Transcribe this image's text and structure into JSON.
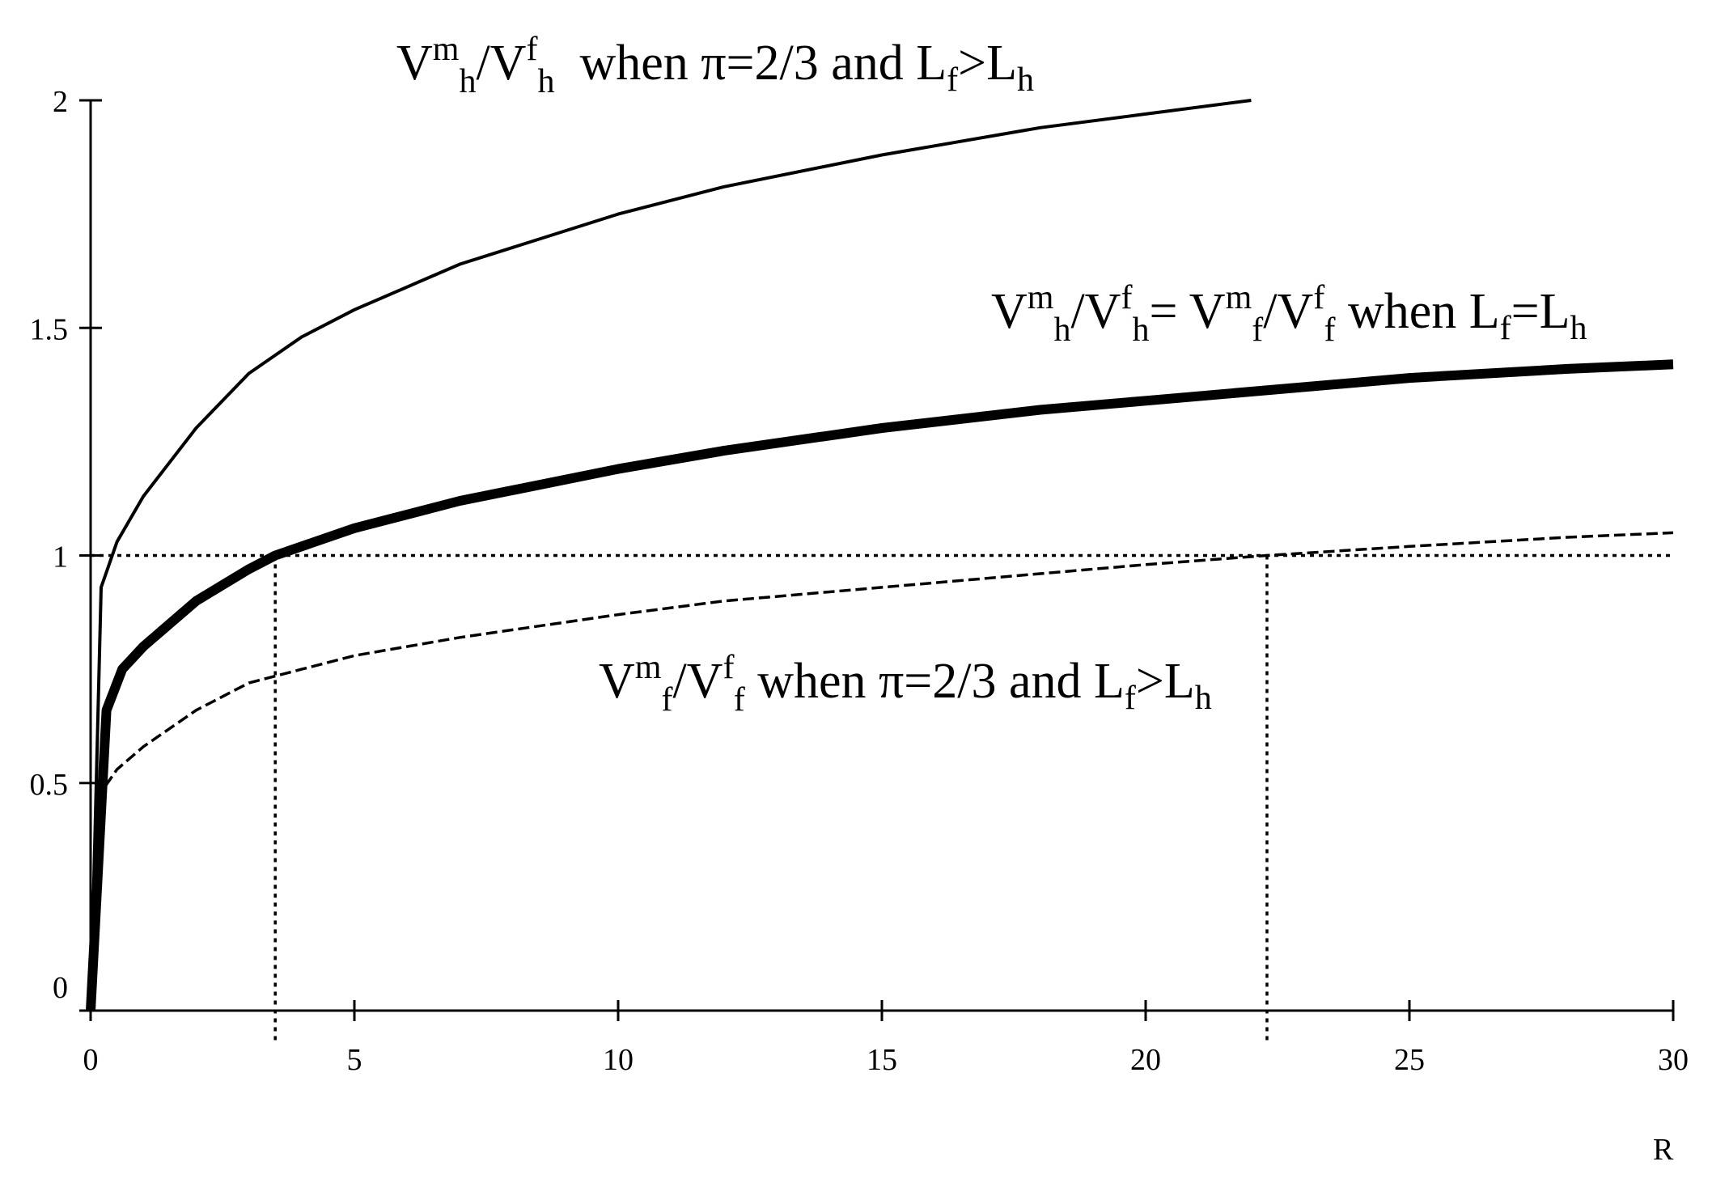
{
  "chart_data": {
    "type": "line",
    "xlabel": "R",
    "ylabel": "",
    "xlim": [
      0,
      30
    ],
    "ylim": [
      0,
      2
    ],
    "x_ticks": [
      "0",
      "5",
      "10",
      "15",
      "20",
      "25",
      "30"
    ],
    "y_ticks": [
      "0",
      "0.5",
      "1",
      "1.5",
      "2"
    ],
    "grid": false,
    "series": [
      {
        "style": "thin-solid",
        "points": [
          [
            0,
            0
          ],
          [
            0.2,
            0.93
          ],
          [
            0.5,
            1.03
          ],
          [
            1,
            1.13
          ],
          [
            2,
            1.28
          ],
          [
            3,
            1.4
          ],
          [
            4,
            1.48
          ],
          [
            5,
            1.54
          ],
          [
            7,
            1.64
          ],
          [
            10,
            1.75
          ],
          [
            12,
            1.81
          ],
          [
            15,
            1.88
          ],
          [
            18,
            1.94
          ],
          [
            20,
            1.97
          ],
          [
            22,
            2.0
          ]
        ]
      },
      {
        "style": "thick-solid",
        "points": [
          [
            0,
            0
          ],
          [
            0.3,
            0.66
          ],
          [
            0.6,
            0.75
          ],
          [
            1,
            0.8
          ],
          [
            2,
            0.9
          ],
          [
            3,
            0.97
          ],
          [
            3.5,
            1.0
          ],
          [
            5,
            1.06
          ],
          [
            7,
            1.12
          ],
          [
            10,
            1.19
          ],
          [
            12,
            1.23
          ],
          [
            15,
            1.28
          ],
          [
            18,
            1.32
          ],
          [
            20,
            1.34
          ],
          [
            22,
            1.36
          ],
          [
            25,
            1.39
          ],
          [
            28,
            1.41
          ],
          [
            30,
            1.42
          ]
        ]
      },
      {
        "style": "dashed",
        "points": [
          [
            0,
            0
          ],
          [
            0.2,
            0.48
          ],
          [
            0.5,
            0.53
          ],
          [
            1,
            0.58
          ],
          [
            2,
            0.66
          ],
          [
            3,
            0.72
          ],
          [
            4,
            0.75
          ],
          [
            5,
            0.78
          ],
          [
            7,
            0.82
          ],
          [
            10,
            0.87
          ],
          [
            12,
            0.9
          ],
          [
            15,
            0.93
          ],
          [
            18,
            0.96
          ],
          [
            20,
            0.98
          ],
          [
            22.3,
            1.0
          ],
          [
            25,
            1.02
          ],
          [
            28,
            1.04
          ],
          [
            30,
            1.05
          ]
        ]
      }
    ],
    "reference_lines": {
      "horizontal_y": 1,
      "vertical_x": [
        3.5,
        22.3
      ]
    },
    "annotations": {
      "top": {
        "v1": "V",
        "m1": "m",
        "s1": "h",
        "slash1": "/V",
        "f1": "f",
        "s2": "h",
        "t1": "  when π=2/3 and L",
        "s3": "f",
        "t2": ">L",
        "s4": "h"
      },
      "middle": {
        "v1": "V",
        "m1": "m",
        "s1": "h",
        "slash1": "/V",
        "f1": "f",
        "s2": "h",
        "t1": "= V",
        "m2": "m",
        "s3": "f",
        "slash2": "/V",
        "f2": "f",
        "s4": "f",
        "t2": " when L",
        "s5": "f",
        "t3": "=L",
        "s6": "h"
      },
      "bottom": {
        "v1": "V",
        "m1": "m",
        "s1": "f",
        "slash1": "/V",
        "f1": "f",
        "s2": "f",
        "t1": " when π=2/3 and L",
        "s3": "f",
        "t2": ">L",
        "s4": "h"
      }
    }
  }
}
